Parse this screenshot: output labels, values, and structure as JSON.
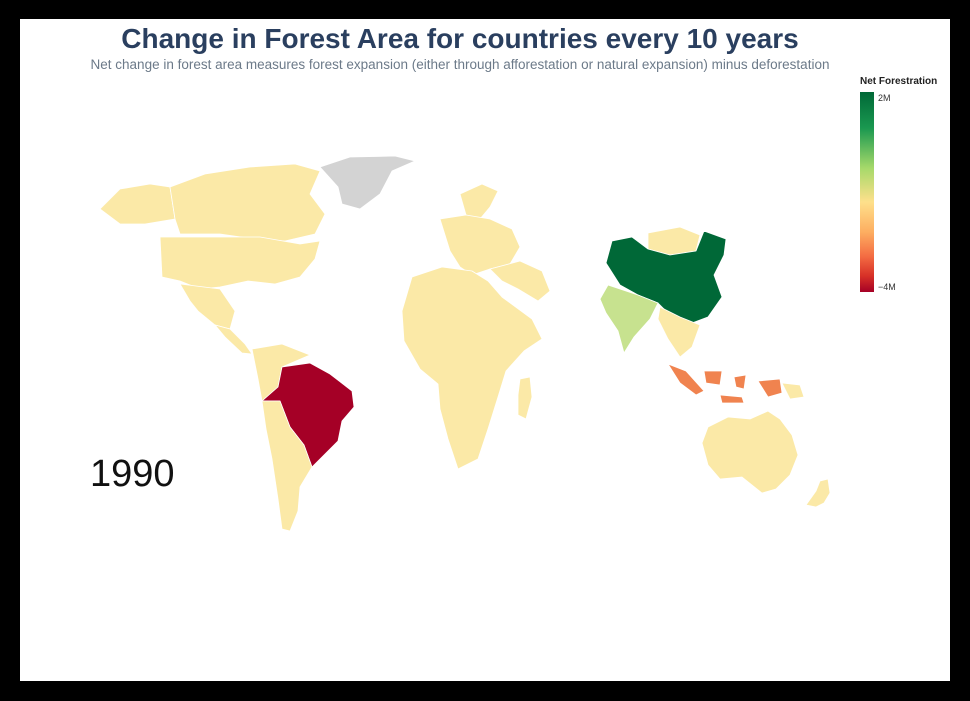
{
  "title": "Change in Forest Area for countries every 10 years",
  "subtitle": "Net change in forest area measures forest expansion (either through afforestation or natural expansion) minus deforestation",
  "year": "1990",
  "legend": {
    "title": "Net Forestration",
    "max_label": "2M",
    "min_label": "−4M",
    "colorscale": [
      "#006837",
      "#1a9850",
      "#a6d96a",
      "#fee08b",
      "#fdae61",
      "#f46d43",
      "#d73027",
      "#a50026"
    ]
  },
  "colors": {
    "neutral": "#fbe9a7",
    "no_data": "#d3d3d3",
    "strong_gain": "#006837",
    "moderate_gain": "#c7e28f",
    "strong_loss": "#a50026",
    "moderate_loss": "#f0834f"
  },
  "regions": [
    {
      "name": "Canada",
      "fill": "neutral"
    },
    {
      "name": "Alaska",
      "fill": "neutral"
    },
    {
      "name": "Greenland",
      "fill": "no_data"
    },
    {
      "name": "United States",
      "fill": "neutral"
    },
    {
      "name": "Mexico",
      "fill": "neutral"
    },
    {
      "name": "Central America",
      "fill": "neutral"
    },
    {
      "name": "Northern South America",
      "fill": "neutral"
    },
    {
      "name": "Brazil",
      "fill": "strong_loss"
    },
    {
      "name": "Southern South America",
      "fill": "neutral"
    },
    {
      "name": "Scandinavia",
      "fill": "neutral"
    },
    {
      "name": "Europe",
      "fill": "neutral"
    },
    {
      "name": "Middle East",
      "fill": "neutral"
    },
    {
      "name": "Africa",
      "fill": "neutral"
    },
    {
      "name": "Madagascar",
      "fill": "neutral"
    },
    {
      "name": "Mongolia",
      "fill": "neutral"
    },
    {
      "name": "China",
      "fill": "strong_gain"
    },
    {
      "name": "India",
      "fill": "moderate_gain"
    },
    {
      "name": "Southeast Asia",
      "fill": "neutral"
    },
    {
      "name": "Indonesia",
      "fill": "moderate_loss"
    },
    {
      "name": "Papua",
      "fill": "neutral"
    },
    {
      "name": "Australia",
      "fill": "neutral"
    },
    {
      "name": "New Zealand",
      "fill": "neutral"
    }
  ]
}
